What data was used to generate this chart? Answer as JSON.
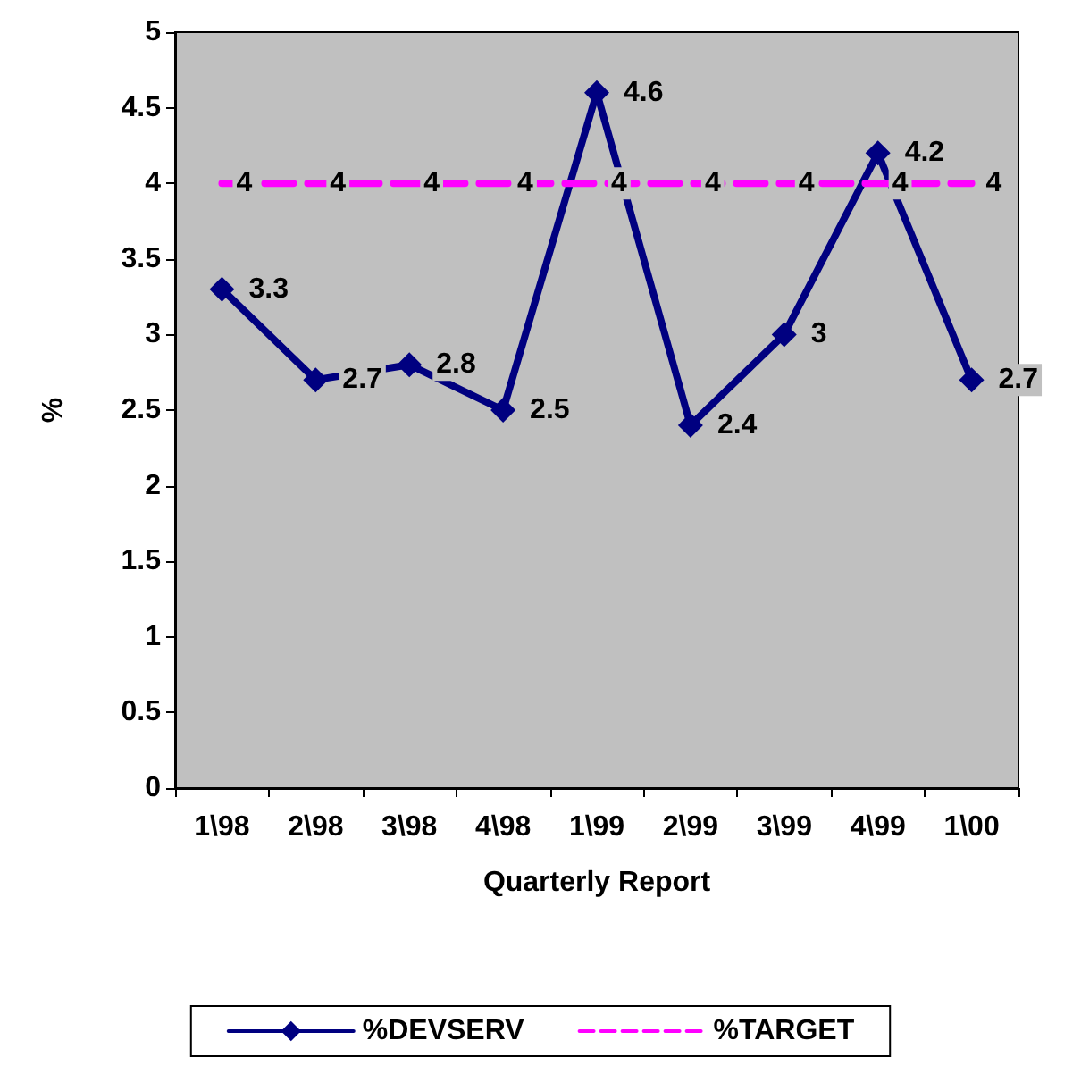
{
  "chart_data": {
    "type": "line",
    "xlabel": "Quarterly Report",
    "ylabel": "%",
    "categories": [
      "1\\98",
      "2\\98",
      "3\\98",
      "4\\98",
      "1\\99",
      "2\\99",
      "3\\99",
      "4\\99",
      "1\\00"
    ],
    "series": [
      {
        "name": "%DEVSERV",
        "color": "#000080",
        "values": [
          3.3,
          2.7,
          2.8,
          2.5,
          4.6,
          2.4,
          3,
          4.2,
          2.7
        ],
        "marker": "diamond",
        "line_style": "solid"
      },
      {
        "name": "%TARGET",
        "color": "#ff00ff",
        "values": [
          4,
          4,
          4,
          4,
          4,
          4,
          4,
          4,
          4
        ],
        "marker": "none",
        "line_style": "dashed"
      }
    ],
    "ylim": [
      0,
      5
    ],
    "yticks": [
      0,
      0.5,
      1,
      1.5,
      2,
      2.5,
      3,
      3.5,
      4,
      4.5,
      5
    ],
    "grid": false,
    "legend": "bottom",
    "data_labels": true
  }
}
